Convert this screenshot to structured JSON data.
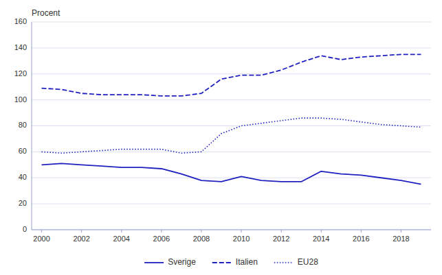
{
  "chart_data": {
    "type": "line",
    "y_label": "Procent",
    "x": [
      2000,
      2001,
      2002,
      2003,
      2004,
      2005,
      2006,
      2007,
      2008,
      2009,
      2010,
      2011,
      2012,
      2013,
      2014,
      2015,
      2016,
      2017,
      2018,
      2019
    ],
    "series": [
      {
        "name": "Sverige",
        "color": "#2020c0",
        "line_style": "solid",
        "values": [
          50,
          51,
          50,
          49,
          48,
          48,
          47,
          43,
          38,
          37,
          41,
          38,
          37,
          37,
          45,
          43,
          42,
          40,
          38,
          35
        ]
      },
      {
        "name": "Italien",
        "color": "#2020c0",
        "line_style": "dashed",
        "values": [
          109,
          108,
          105,
          104,
          104,
          104,
          103,
          103,
          105,
          116,
          119,
          119,
          123,
          129,
          134,
          131,
          133,
          134,
          135,
          135
        ]
      },
      {
        "name": "EU28",
        "color": "#2020c0",
        "line_style": "dotted",
        "values": [
          60,
          59,
          60,
          61,
          62,
          62,
          62,
          59,
          60,
          74,
          80,
          82,
          84,
          86,
          86,
          85,
          83,
          81,
          80,
          79
        ]
      }
    ],
    "xlim": [
      1999.5,
      2019.5
    ],
    "xticks": [
      2000,
      2002,
      2004,
      2006,
      2008,
      2010,
      2012,
      2014,
      2016,
      2018
    ],
    "ylim": [
      0,
      160
    ],
    "yticks": [
      0,
      20,
      40,
      60,
      80,
      100,
      120,
      140,
      160
    ],
    "grid": true,
    "legend": "bottom"
  }
}
